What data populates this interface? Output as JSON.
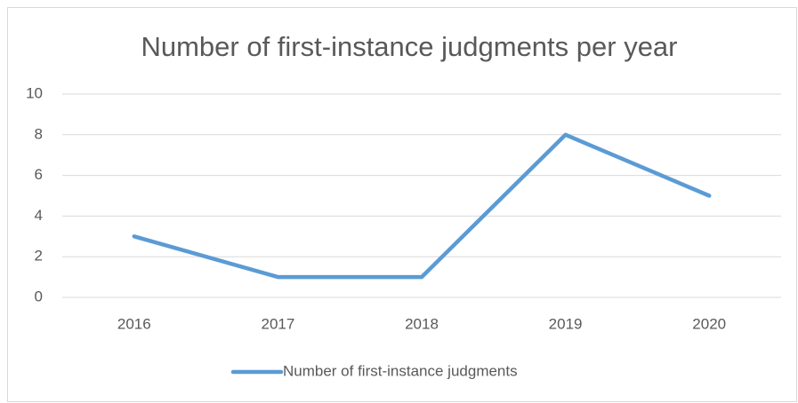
{
  "chart_data": {
    "type": "line",
    "title": "Number of first-instance judgments per year",
    "categories": [
      "2016",
      "2017",
      "2018",
      "2019",
      "2020"
    ],
    "series": [
      {
        "name": "Number of first-instance judgments",
        "color": "#5b9bd5",
        "values": [
          3,
          1,
          1,
          8,
          5
        ]
      }
    ],
    "ylim": [
      0,
      10
    ],
    "yticks": [
      0,
      2,
      4,
      6,
      8,
      10
    ],
    "grid": true,
    "legend": "bottom"
  }
}
